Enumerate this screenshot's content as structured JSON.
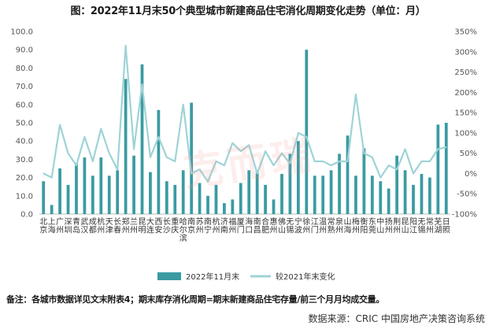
{
  "title": "图：2022年11月末50个典型城市新建商品住宅消化周期变化走势（单位：月）",
  "footnote": "备注：各城市数据详见文末附表4；期末库存消化周期=期末新建商品住宅存量/前三个月月均成交量。",
  "source": "数据来源：CRIC 中国房地产决策咨询系统",
  "watermark": "克而瑞",
  "colors": {
    "bar": "#3a9ba2",
    "line": "#9fd3d6"
  },
  "chart_data": {
    "type": "bar",
    "title": "图：2022年11月末50个典型城市新建商品住宅消化周期变化走势（单位：月）",
    "categories": [
      "北京",
      "上海",
      "广州",
      "深圳",
      "青岛",
      "武汉",
      "成都",
      "杭州",
      "天津",
      "长春",
      "郑州",
      "兰州",
      "昆明",
      "大连",
      "西安",
      "长沙",
      "重庆",
      "哈尔滨",
      "南京",
      "苏州",
      "南宁",
      "杭州",
      "济南",
      "福州",
      "厦门",
      "海口",
      "南昌",
      "合肥",
      "惠州",
      "佛山",
      "无锡",
      "宁波",
      "徐州",
      "江门",
      "温州",
      "常熟",
      "泉州",
      "山海",
      "梅州",
      "衡阳",
      "东莞",
      "中山",
      "扬州",
      "荆州",
      "昆山",
      "阳江",
      "无锡",
      "常州",
      "芜湖",
      "日照"
    ],
    "series": [
      {
        "name": "2022年11月末",
        "type": "bar",
        "axis": "left",
        "values": [
          18,
          5,
          25,
          16,
          28,
          31,
          21,
          31,
          21,
          24,
          74,
          32,
          82,
          23,
          57,
          18,
          16,
          24,
          61,
          17,
          10,
          16,
          6,
          8,
          17,
          24,
          24,
          16,
          8,
          22,
          33,
          40,
          90,
          21,
          21,
          24,
          33,
          43,
          21,
          36,
          21,
          18,
          14,
          32,
          24,
          16,
          22,
          20,
          49,
          50
        ]
      },
      {
        "name": "较2021年末变化",
        "type": "line",
        "axis": "right",
        "values": [
          0,
          -10,
          120,
          50,
          20,
          90,
          30,
          110,
          50,
          10,
          315,
          60,
          220,
          40,
          90,
          40,
          30,
          170,
          0,
          10,
          -20,
          30,
          20,
          75,
          55,
          70,
          0,
          55,
          20,
          50,
          25,
          100,
          90,
          30,
          30,
          20,
          30,
          30,
          195,
          50,
          40,
          -10,
          20,
          10,
          60,
          0,
          30,
          30,
          60,
          65
        ]
      }
    ],
    "y_left": {
      "min": 0,
      "max": 100,
      "step": 10,
      "ticks": [
        "0.0",
        "10.0",
        "20.0",
        "30.0",
        "40.0",
        "50.0",
        "60.0",
        "70.0",
        "80.0",
        "90.0",
        "100.0"
      ]
    },
    "y_right": {
      "min": -100,
      "max": 350,
      "step": 50,
      "ticks": [
        "-100%",
        "-50%",
        "0%",
        "50%",
        "100%",
        "150%",
        "200%",
        "250%",
        "300%",
        "350%"
      ]
    },
    "grid": false,
    "legend": "bottom"
  }
}
